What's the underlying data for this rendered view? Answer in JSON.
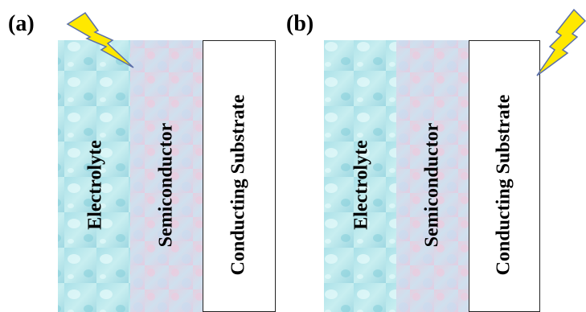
{
  "panels": [
    {
      "label": "(a)",
      "layers": [
        "Electrolyte",
        "Semiconductor",
        "Conducting Substrate"
      ]
    },
    {
      "label": "(b)",
      "layers": [
        "Electrolyte",
        "Semiconductor",
        "Conducting Substrate"
      ]
    }
  ]
}
